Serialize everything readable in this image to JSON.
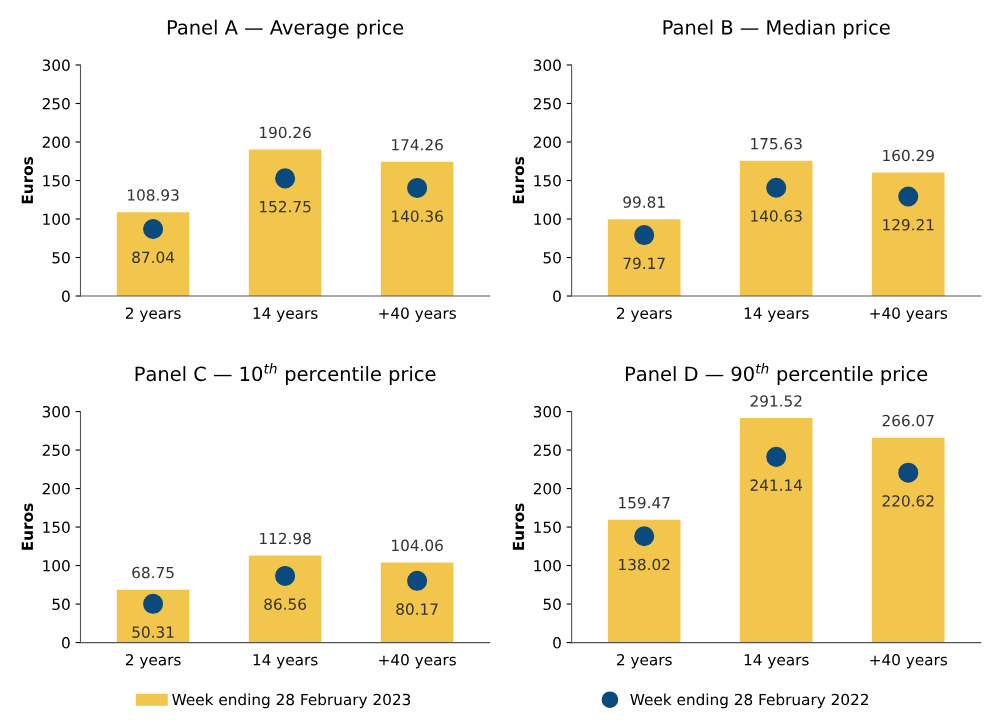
{
  "chart_data": [
    {
      "type": "bar",
      "title": "Panel A — Average price",
      "ylabel": "Euros",
      "categories": [
        "2 years",
        "14 years",
        "+40 years"
      ],
      "ylim": [
        0,
        300
      ],
      "yticks": [
        0,
        50,
        100,
        150,
        200,
        250,
        300
      ],
      "data_labels": true,
      "grid": false,
      "legend": "bottom",
      "series": [
        {
          "name": "Week ending 28 February 2023",
          "color": "#f2c54d",
          "values": [
            108.93,
            190.26,
            174.26
          ]
        },
        {
          "name": "Week ending 28 February 2022",
          "type": "scatter",
          "marker": "circle",
          "color": "#0b4a7d",
          "values": [
            87.04,
            152.75,
            140.36
          ]
        }
      ]
    },
    {
      "type": "bar",
      "title": "Panel B — Median price",
      "ylabel": "Euros",
      "categories": [
        "2 years",
        "14 years",
        "+40 years"
      ],
      "ylim": [
        0,
        300
      ],
      "yticks": [
        0,
        50,
        100,
        150,
        200,
        250,
        300
      ],
      "data_labels": true,
      "grid": false,
      "series": [
        {
          "color": "#f2c54d",
          "values": [
            99.81,
            175.63,
            160.29
          ]
        },
        {
          "type": "scatter",
          "marker": "circle",
          "color": "#0b4a7d",
          "values": [
            79.17,
            140.63,
            129.21
          ]
        }
      ]
    },
    {
      "type": "bar",
      "title": "Panel C — 10$^{th}$ percentile price",
      "ylabel": "Euros",
      "categories": [
        "2 years",
        "14 years",
        "+40 years"
      ],
      "ylim": [
        0,
        300
      ],
      "yticks": [
        0,
        50,
        100,
        150,
        200,
        250,
        300
      ],
      "data_labels": true,
      "grid": false,
      "series": [
        {
          "color": "#f2c54d",
          "values": [
            68.75,
            112.98,
            104.06
          ]
        },
        {
          "type": "scatter",
          "marker": "circle",
          "color": "#0b4a7d",
          "values": [
            50.31,
            86.56,
            80.17
          ]
        }
      ]
    },
    {
      "type": "bar",
      "title": "Panel D — 90$^{th}$ percentile price",
      "ylabel": "Euros",
      "categories": [
        "2 years",
        "14 years",
        "+40 years"
      ],
      "ylim": [
        0,
        300
      ],
      "yticks": [
        0,
        50,
        100,
        150,
        200,
        250,
        300
      ],
      "data_labels": true,
      "grid": false,
      "series": [
        {
          "color": "#f2c54d",
          "values": [
            159.47,
            291.52,
            266.07
          ]
        },
        {
          "type": "scatter",
          "marker": "circle",
          "color": "#0b4a7d",
          "values": [
            138.02,
            241.14,
            220.62
          ]
        }
      ]
    }
  ]
}
